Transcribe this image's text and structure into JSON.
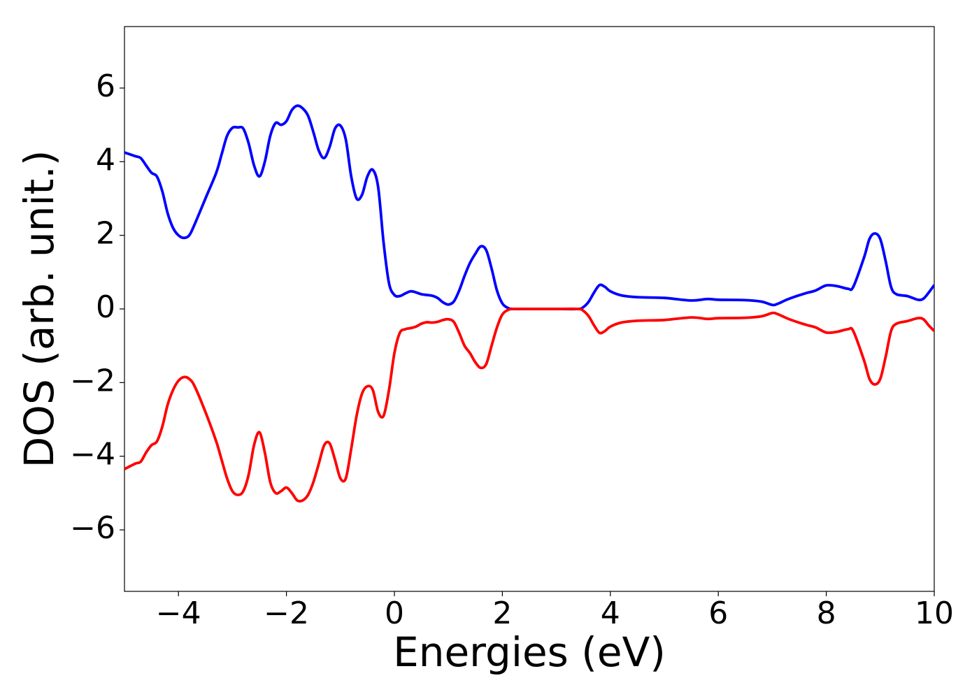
{
  "chart_data": {
    "type": "line",
    "xlabel": "Energies (eV)",
    "ylabel": "DOS (arb. unit.)",
    "x": [
      -5,
      -4.8,
      -4.7,
      -4.6,
      -4.5,
      -4.4,
      -4.3,
      -4.2,
      -4.1,
      -4,
      -3.9,
      -3.8,
      -3.7,
      -3.5,
      -3.3,
      -3.2,
      -3.1,
      -3,
      -2.9,
      -2.8,
      -2.7,
      -2.6,
      -2.5,
      -2.4,
      -2.3,
      -2.2,
      -2.1,
      -2,
      -1.9,
      -1.8,
      -1.7,
      -1.6,
      -1.5,
      -1.4,
      -1.3,
      -1.2,
      -1.1,
      -1,
      -0.9,
      -0.8,
      -0.7,
      -0.6,
      -0.5,
      -0.4,
      -0.3,
      -0.2,
      -0.1,
      0,
      0.1,
      0.2,
      0.3,
      0.4,
      0.5,
      0.6,
      0.7,
      0.8,
      0.9,
      1,
      1.1,
      1.2,
      1.3,
      1.4,
      1.5,
      1.6,
      1.7,
      1.8,
      1.9,
      2,
      2.1,
      2.2,
      2.5,
      3,
      3.4,
      3.5,
      3.6,
      3.7,
      3.8,
      3.9,
      4,
      4.2,
      4.5,
      5,
      5.5,
      5.8,
      6,
      6.5,
      6.8,
      7,
      7.1,
      7.3,
      7.6,
      7.8,
      8,
      8.2,
      8.4,
      8.5,
      8.7,
      8.8,
      8.9,
      9,
      9.1,
      9.2,
      9.3,
      9.5,
      9.7,
      9.8,
      9.9,
      10
    ],
    "series": [
      {
        "color": "#0000ff",
        "values": [
          4.25,
          4.15,
          4.1,
          3.9,
          3.7,
          3.6,
          3.2,
          2.6,
          2.2,
          2.0,
          1.93,
          2.0,
          2.3,
          3.0,
          3.7,
          4.2,
          4.7,
          4.92,
          4.93,
          4.9,
          4.5,
          3.9,
          3.6,
          4.0,
          4.7,
          5.05,
          5.0,
          5.1,
          5.4,
          5.52,
          5.45,
          5.25,
          4.8,
          4.3,
          4.1,
          4.4,
          4.9,
          4.98,
          4.6,
          3.6,
          3.0,
          3.1,
          3.6,
          3.78,
          3.3,
          1.8,
          0.7,
          0.38,
          0.35,
          0.42,
          0.48,
          0.45,
          0.4,
          0.38,
          0.36,
          0.3,
          0.18,
          0.12,
          0.2,
          0.5,
          0.9,
          1.25,
          1.5,
          1.7,
          1.6,
          1.1,
          0.5,
          0.15,
          0.03,
          0,
          0,
          0,
          0,
          0.05,
          0.2,
          0.45,
          0.65,
          0.6,
          0.48,
          0.37,
          0.32,
          0.3,
          0.23,
          0.27,
          0.25,
          0.24,
          0.2,
          0.11,
          0.14,
          0.27,
          0.42,
          0.5,
          0.64,
          0.62,
          0.55,
          0.6,
          1.4,
          1.9,
          2.05,
          1.9,
          1.3,
          0.6,
          0.4,
          0.35,
          0.25,
          0.28,
          0.45,
          0.65
        ]
      },
      {
        "color": "#ff0000",
        "values": [
          -4.35,
          -4.2,
          -4.15,
          -3.9,
          -3.7,
          -3.6,
          -3.2,
          -2.6,
          -2.2,
          -1.95,
          -1.85,
          -1.9,
          -2.1,
          -2.8,
          -3.6,
          -4.1,
          -4.6,
          -4.95,
          -5.05,
          -4.95,
          -4.5,
          -3.7,
          -3.35,
          -3.9,
          -4.7,
          -5.0,
          -4.95,
          -4.85,
          -5.0,
          -5.2,
          -5.2,
          -5.05,
          -4.7,
          -4.2,
          -3.7,
          -3.65,
          -4.1,
          -4.6,
          -4.6,
          -3.8,
          -2.9,
          -2.3,
          -2.1,
          -2.2,
          -2.8,
          -2.9,
          -2.2,
          -1.2,
          -0.65,
          -0.55,
          -0.52,
          -0.48,
          -0.4,
          -0.36,
          -0.37,
          -0.35,
          -0.3,
          -0.28,
          -0.35,
          -0.65,
          -1.0,
          -1.2,
          -1.45,
          -1.6,
          -1.5,
          -1.0,
          -0.5,
          -0.15,
          -0.03,
          0,
          0,
          0,
          0,
          -0.05,
          -0.2,
          -0.45,
          -0.65,
          -0.6,
          -0.48,
          -0.37,
          -0.32,
          -0.3,
          -0.23,
          -0.27,
          -0.25,
          -0.24,
          -0.2,
          -0.11,
          -0.14,
          -0.27,
          -0.42,
          -0.5,
          -0.64,
          -0.62,
          -0.55,
          -0.6,
          -1.4,
          -1.9,
          -2.05,
          -1.9,
          -1.3,
          -0.6,
          -0.4,
          -0.33,
          -0.25,
          -0.28,
          -0.45,
          -0.6
        ]
      }
    ],
    "xlim": [
      -5,
      10
    ],
    "xticks": [
      {
        "value": -4,
        "label": "−4"
      },
      {
        "value": -2,
        "label": "−2"
      },
      0,
      2,
      4,
      6,
      8,
      10
    ],
    "ylim": [
      -7.67,
      7.67
    ],
    "yticks": [
      {
        "value": -6,
        "label": "−6"
      },
      {
        "value": -4,
        "label": "−4"
      },
      {
        "value": -2,
        "label": "−2"
      },
      0,
      2,
      4,
      6
    ]
  }
}
